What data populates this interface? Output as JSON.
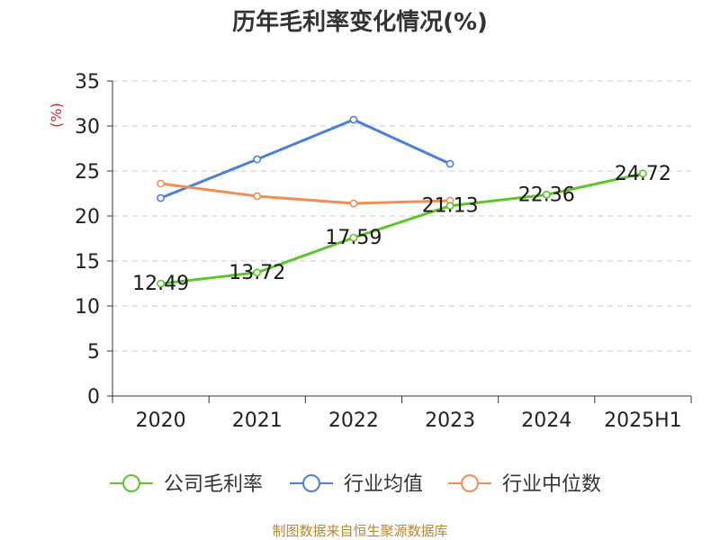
{
  "chart_data": {
    "type": "line",
    "title": "历年毛利率变化情况(%)",
    "ylabel": "(%)",
    "xlabel": "",
    "categories": [
      "2020",
      "2021",
      "2022",
      "2023",
      "2024",
      "2025H1"
    ],
    "ylim": [
      0,
      35
    ],
    "yticks": [
      0,
      5,
      10,
      15,
      20,
      25,
      30,
      35
    ],
    "grid": "horizontal-dashed",
    "legend_position": "bottom",
    "series": [
      {
        "name": "公司毛利率",
        "color": "#5ec42a",
        "values": [
          12.49,
          13.72,
          17.59,
          21.13,
          22.36,
          24.72
        ],
        "labels": [
          "12.49",
          "13.72",
          "17.59",
          "21.13",
          "22.36",
          "24.72"
        ]
      },
      {
        "name": "行业均值",
        "color": "#4a80d8",
        "values": [
          22.0,
          26.3,
          30.7,
          25.8,
          null,
          null
        ]
      },
      {
        "name": "行业中位数",
        "color": "#f28e55",
        "values": [
          23.6,
          22.2,
          21.4,
          21.7,
          null,
          null
        ]
      }
    ]
  },
  "source_text": "制图数据来自恒生聚源数据库"
}
